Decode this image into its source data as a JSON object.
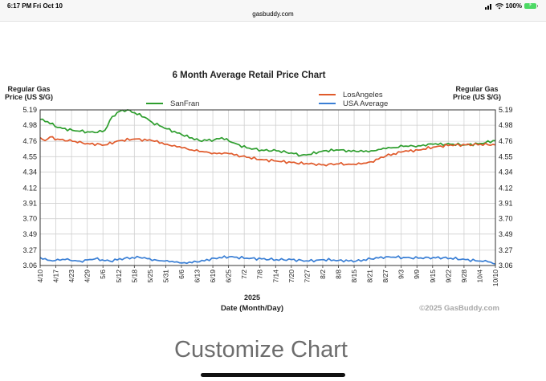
{
  "status_bar": {
    "time": "6:17 PM",
    "date": "Fri Oct 10",
    "url": "gasbuddy.com",
    "battery": "100%"
  },
  "customize_label": "Customize Chart",
  "chart_data": {
    "type": "line",
    "title": "6 Month Average Retail Price Chart",
    "ylabel_left": [
      "Regular Gas",
      "Price (US $/G)"
    ],
    "ylabel_right": [
      "Regular Gas",
      "Price (US $/G)"
    ],
    "year_label": "2025",
    "xlabel": "Date (Month/Day)",
    "copyright": "©2025 GasBuddy.com",
    "grid": true,
    "legend_position": "top",
    "ylim": [
      3.06,
      5.19
    ],
    "yticks": [
      "5.19",
      "4.98",
      "4.76",
      "4.55",
      "4.34",
      "4.12",
      "3.91",
      "3.70",
      "3.49",
      "3.27",
      "3.06"
    ],
    "x_range": [
      "2025-04-10",
      "2025-10-10"
    ],
    "xticks": [
      "4/10",
      "4/17",
      "4/23",
      "4/29",
      "5/6",
      "5/12",
      "5/18",
      "5/25",
      "5/31",
      "6/6",
      "6/13",
      "6/19",
      "6/25",
      "7/2",
      "7/8",
      "7/14",
      "7/20",
      "7/27",
      "8/2",
      "8/8",
      "8/15",
      "8/21",
      "8/27",
      "9/3",
      "9/9",
      "9/15",
      "9/22",
      "9/28",
      "10/4",
      "10/10"
    ],
    "series": [
      {
        "name": "SanFran",
        "color": "#2e9e2e",
        "points": [
          [
            "2025-04-10",
            5.06
          ],
          [
            "2025-04-13",
            5.03
          ],
          [
            "2025-04-17",
            4.95
          ],
          [
            "2025-04-23",
            4.91
          ],
          [
            "2025-04-29",
            4.89
          ],
          [
            "2025-05-03",
            4.88
          ],
          [
            "2025-05-06",
            4.91
          ],
          [
            "2025-05-09",
            5.1
          ],
          [
            "2025-05-12",
            5.17
          ],
          [
            "2025-05-15",
            5.19
          ],
          [
            "2025-05-18",
            5.15
          ],
          [
            "2025-05-22",
            5.09
          ],
          [
            "2025-05-25",
            5.02
          ],
          [
            "2025-05-31",
            4.93
          ],
          [
            "2025-06-06",
            4.85
          ],
          [
            "2025-06-13",
            4.77
          ],
          [
            "2025-06-19",
            4.78
          ],
          [
            "2025-06-22",
            4.81
          ],
          [
            "2025-06-25",
            4.76
          ],
          [
            "2025-07-02",
            4.67
          ],
          [
            "2025-07-08",
            4.64
          ],
          [
            "2025-07-14",
            4.63
          ],
          [
            "2025-07-20",
            4.6
          ],
          [
            "2025-07-24",
            4.57
          ],
          [
            "2025-07-27",
            4.58
          ],
          [
            "2025-08-02",
            4.63
          ],
          [
            "2025-08-08",
            4.64
          ],
          [
            "2025-08-15",
            4.62
          ],
          [
            "2025-08-21",
            4.63
          ],
          [
            "2025-08-27",
            4.66
          ],
          [
            "2025-09-03",
            4.69
          ],
          [
            "2025-09-09",
            4.7
          ],
          [
            "2025-09-15",
            4.72
          ],
          [
            "2025-09-22",
            4.72
          ],
          [
            "2025-09-28",
            4.71
          ],
          [
            "2025-10-04",
            4.73
          ],
          [
            "2025-10-10",
            4.77
          ]
        ]
      },
      {
        "name": "LosAngeles",
        "color": "#e05a2b",
        "points": [
          [
            "2025-04-10",
            4.81
          ],
          [
            "2025-04-12",
            4.77
          ],
          [
            "2025-04-14",
            4.82
          ],
          [
            "2025-04-17",
            4.79
          ],
          [
            "2025-04-23",
            4.76
          ],
          [
            "2025-04-29",
            4.73
          ],
          [
            "2025-05-06",
            4.71
          ],
          [
            "2025-05-12",
            4.77
          ],
          [
            "2025-05-18",
            4.79
          ],
          [
            "2025-05-25",
            4.77
          ],
          [
            "2025-05-31",
            4.72
          ],
          [
            "2025-06-06",
            4.67
          ],
          [
            "2025-06-13",
            4.62
          ],
          [
            "2025-06-19",
            4.6
          ],
          [
            "2025-06-25",
            4.59
          ],
          [
            "2025-07-02",
            4.54
          ],
          [
            "2025-07-08",
            4.51
          ],
          [
            "2025-07-14",
            4.49
          ],
          [
            "2025-07-20",
            4.47
          ],
          [
            "2025-07-27",
            4.45
          ],
          [
            "2025-08-02",
            4.44
          ],
          [
            "2025-08-08",
            4.45
          ],
          [
            "2025-08-15",
            4.44
          ],
          [
            "2025-08-21",
            4.48
          ],
          [
            "2025-08-27",
            4.56
          ],
          [
            "2025-09-03",
            4.62
          ],
          [
            "2025-09-09",
            4.64
          ],
          [
            "2025-09-15",
            4.68
          ],
          [
            "2025-09-22",
            4.71
          ],
          [
            "2025-09-28",
            4.71
          ],
          [
            "2025-10-04",
            4.72
          ],
          [
            "2025-10-10",
            4.71
          ]
        ]
      },
      {
        "name": "USA Average",
        "color": "#3a7fd5",
        "points": [
          [
            "2025-04-10",
            3.17
          ],
          [
            "2025-04-14",
            3.13
          ],
          [
            "2025-04-20",
            3.14
          ],
          [
            "2025-04-26",
            3.12
          ],
          [
            "2025-05-02",
            3.15
          ],
          [
            "2025-05-08",
            3.12
          ],
          [
            "2025-05-14",
            3.16
          ],
          [
            "2025-05-20",
            3.17
          ],
          [
            "2025-05-26",
            3.14
          ],
          [
            "2025-06-01",
            3.11
          ],
          [
            "2025-06-07",
            3.1
          ],
          [
            "2025-06-13",
            3.11
          ],
          [
            "2025-06-19",
            3.16
          ],
          [
            "2025-06-25",
            3.18
          ],
          [
            "2025-07-02",
            3.16
          ],
          [
            "2025-07-08",
            3.15
          ],
          [
            "2025-07-14",
            3.14
          ],
          [
            "2025-07-20",
            3.14
          ],
          [
            "2025-07-27",
            3.12
          ],
          [
            "2025-08-02",
            3.14
          ],
          [
            "2025-08-08",
            3.13
          ],
          [
            "2025-08-15",
            3.12
          ],
          [
            "2025-08-21",
            3.15
          ],
          [
            "2025-08-27",
            3.18
          ],
          [
            "2025-09-03",
            3.17
          ],
          [
            "2025-09-09",
            3.16
          ],
          [
            "2025-09-15",
            3.17
          ],
          [
            "2025-09-22",
            3.16
          ],
          [
            "2025-09-28",
            3.14
          ],
          [
            "2025-10-04",
            3.12
          ],
          [
            "2025-10-07",
            3.11
          ],
          [
            "2025-10-10",
            3.08
          ]
        ]
      }
    ]
  }
}
